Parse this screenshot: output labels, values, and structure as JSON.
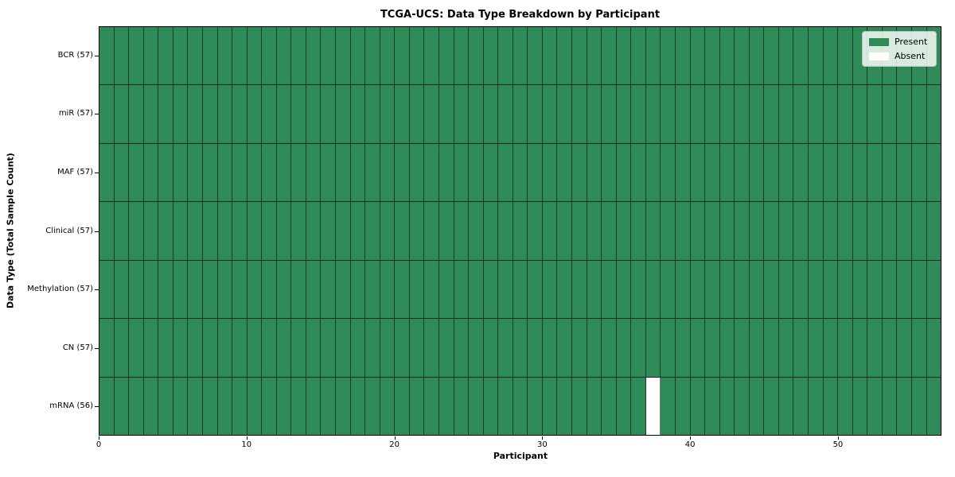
{
  "chart_data": {
    "type": "heatmap",
    "title": "TCGA-UCS: Data Type Breakdown by Participant",
    "xlabel": "Participant",
    "ylabel": "Data Type (Total Sample Count)",
    "n_participants": 57,
    "xlim": [
      0,
      57
    ],
    "x_ticks": [
      0,
      10,
      20,
      30,
      40,
      50
    ],
    "rows": [
      {
        "label": "BCR (57)",
        "present_count": 57,
        "absent_participants": []
      },
      {
        "label": "miR (57)",
        "present_count": 57,
        "absent_participants": []
      },
      {
        "label": "MAF (57)",
        "present_count": 57,
        "absent_participants": []
      },
      {
        "label": "Clinical (57)",
        "present_count": 57,
        "absent_participants": []
      },
      {
        "label": "Methylation (57)",
        "present_count": 57,
        "absent_participants": []
      },
      {
        "label": "CN (57)",
        "present_count": 57,
        "absent_participants": []
      },
      {
        "label": "mRNA (56)",
        "present_count": 56,
        "absent_participants": [
          37
        ]
      }
    ],
    "legend": [
      {
        "label": "Present",
        "color": "#2e8b57"
      },
      {
        "label": "Absent",
        "color": "#ffffff"
      }
    ],
    "colors": {
      "present": "#2e8b57",
      "absent": "#ffffff",
      "cell_edge": "#000000",
      "background": "#ffffff"
    },
    "layout_hints": {
      "legend_position": "upper right",
      "grid": "cell-edges"
    }
  }
}
